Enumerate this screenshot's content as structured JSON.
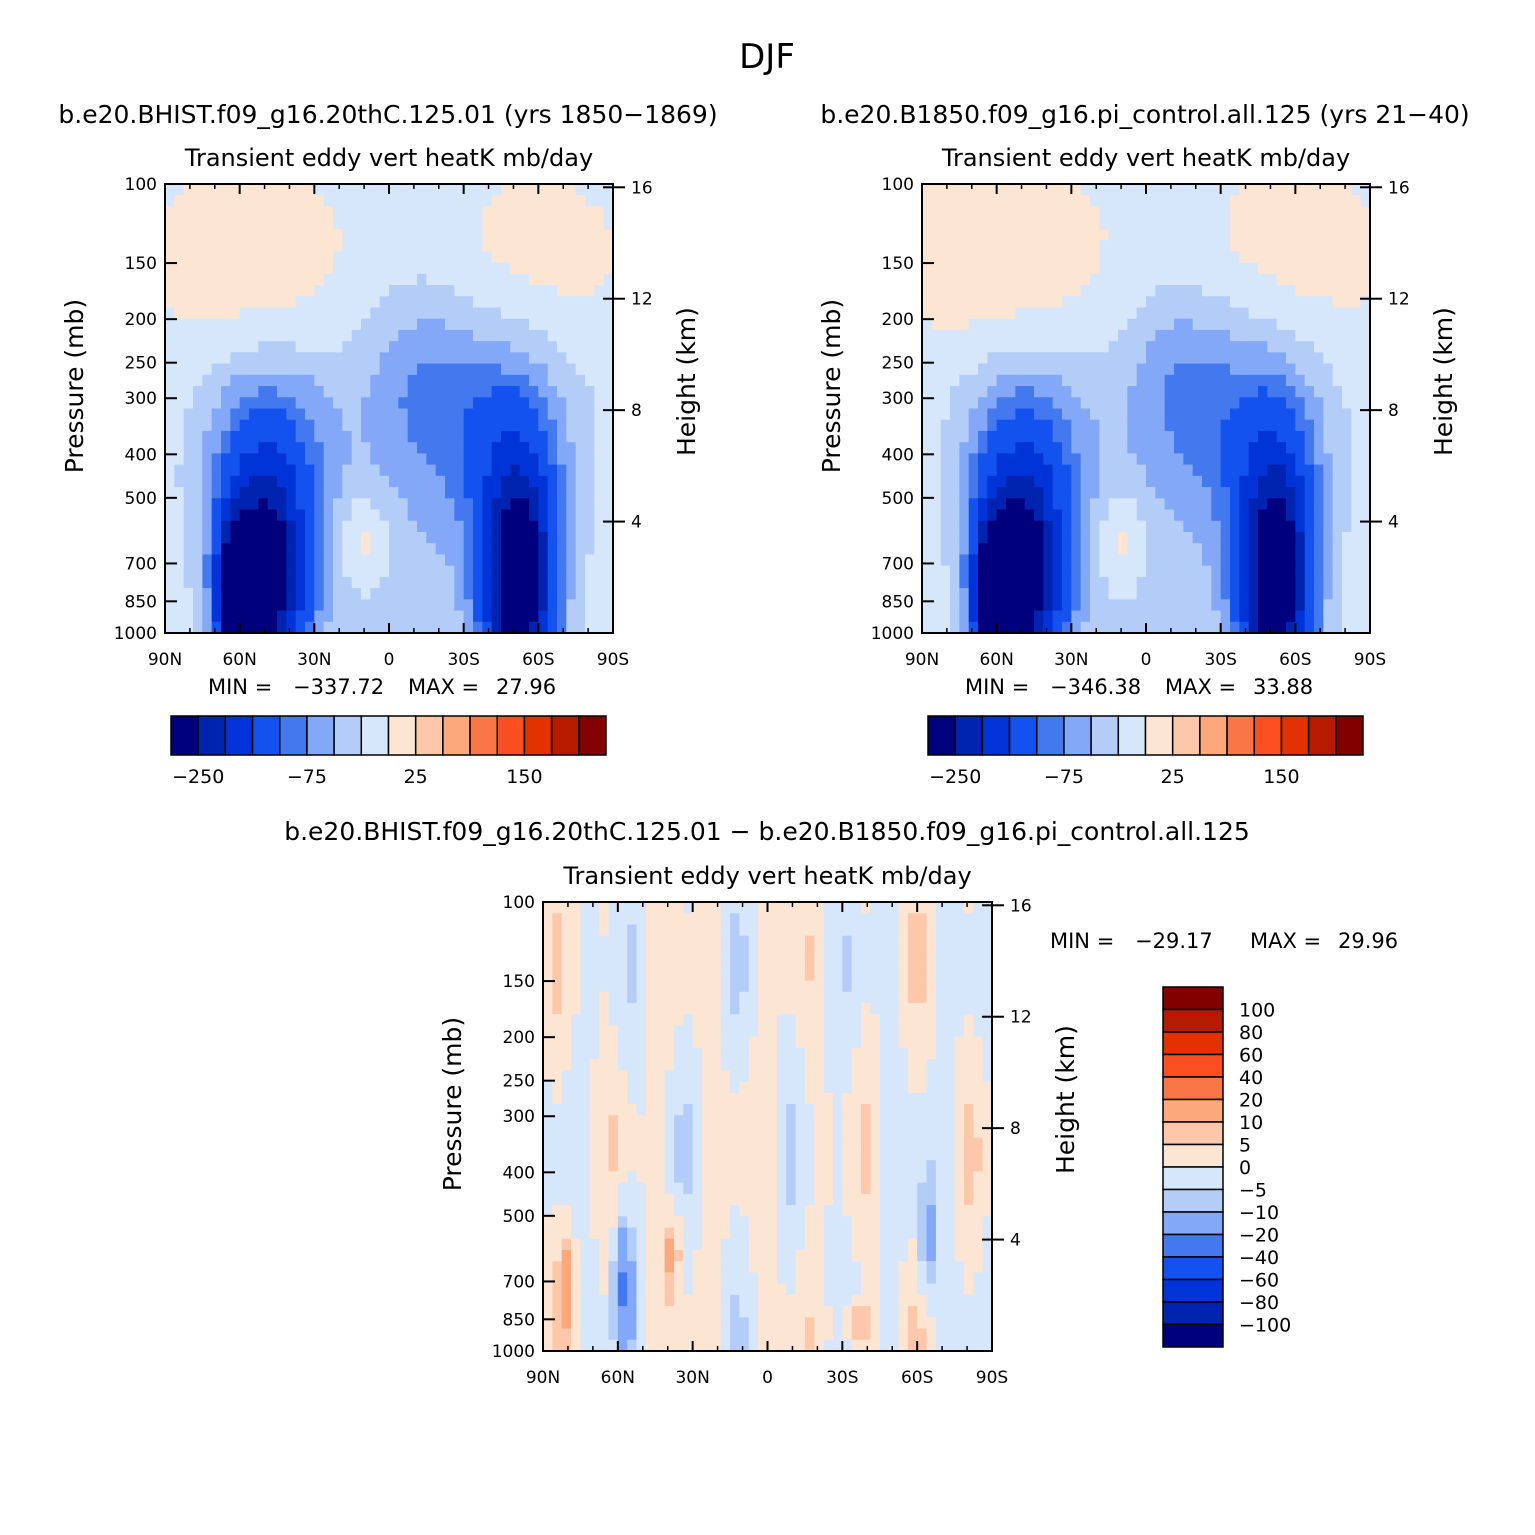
{
  "figure": {
    "title": "DJF",
    "panels": [
      {
        "id": "case",
        "header": "b.e20.BHIST.f09_g16.20thC.125.01 (yrs 1850−1869)",
        "title": "Transient eddy vert heatK mb/day",
        "ylabel": "Pressure (mb)",
        "y2label": "Height (km)",
        "min_label": "MIN =",
        "min_value": "−337.72",
        "max_label": "MAX =",
        "max_value": "27.96"
      },
      {
        "id": "control",
        "header": "b.e20.B1850.f09_g16.pi_control.all.125 (yrs 21−40)",
        "title": "Transient eddy vert heatK mb/day",
        "ylabel": "Pressure (mb)",
        "y2label": "Height (km)",
        "min_label": "MIN =",
        "min_value": "−346.38",
        "max_label": "MAX =",
        "max_value": "33.88"
      },
      {
        "id": "diff",
        "header": "b.e20.BHIST.f09_g16.20thC.125.01 − b.e20.B1850.f09_g16.pi_control.all.125",
        "title": "Transient eddy vert heatK mb/day",
        "ylabel": "Pressure (mb)",
        "y2label": "Height (km)",
        "min_label": "MIN =",
        "min_value": "−29.17",
        "max_label": "MAX =",
        "max_value": "29.96"
      }
    ],
    "x_ticks": [
      "90N",
      "60N",
      "30N",
      "0",
      "30S",
      "60S",
      "90S"
    ],
    "y_ticks": [
      "100",
      "150",
      "200",
      "250",
      "300",
      "400",
      "500",
      "700",
      "850",
      "1000"
    ],
    "y2_ticks": [
      "16",
      "12",
      "8",
      "4"
    ],
    "colorbar_main": {
      "colors": [
        "#00007f",
        "#0023b0",
        "#0034d9",
        "#1452ef",
        "#4378ef",
        "#82a8f7",
        "#b3cdf8",
        "#d7e7fb",
        "#fde5d3",
        "#fdc7a9",
        "#fca87c",
        "#fa7647",
        "#fb4f22",
        "#e33100",
        "#b61b00",
        "#820000"
      ],
      "labels": [
        "−250",
        "−75",
        "25",
        "150"
      ]
    },
    "colorbar_diff": {
      "colors_top_to_bottom": [
        "#820000",
        "#b61b00",
        "#e33100",
        "#fb4f22",
        "#fa7647",
        "#fca87c",
        "#fdc7a9",
        "#fde5d3",
        "#d7e7fb",
        "#b3cdf8",
        "#82a8f7",
        "#4378ef",
        "#1452ef",
        "#0034d9",
        "#0023b0",
        "#00007f"
      ],
      "labels": [
        "100",
        "80",
        "60",
        "40",
        "20",
        "10",
        "5",
        "0",
        "−5",
        "−10",
        "−20",
        "−40",
        "−60",
        "−80",
        "−100"
      ]
    }
  },
  "chart_data": [
    {
      "type": "heatmap",
      "title": "Transient eddy vert heatK mb/day",
      "header": "b.e20.BHIST.f09_g16.20thC.125.01 (yrs 1850−1869)",
      "xlabel": "",
      "ylabel": "Pressure (mb)",
      "y2label": "Height (km)",
      "xlim": [
        90,
        -90
      ],
      "ylim": [
        1000,
        100
      ],
      "yscale": "log",
      "min": -337.72,
      "max": 27.96,
      "levels": [
        -250,
        -200,
        -150,
        -100,
        -75,
        -50,
        -25,
        0,
        25,
        50,
        75,
        100,
        150,
        200,
        250
      ],
      "features": [
        {
          "lat": 47,
          "p": 780,
          "value": -300
        },
        {
          "lat": 58,
          "p": 800,
          "value": -300
        },
        {
          "lat": -50,
          "p": 830,
          "value": -320
        },
        {
          "lat": 10,
          "p": 600,
          "value": 15
        },
        {
          "lat": -10,
          "p": 160,
          "value": 10
        }
      ]
    },
    {
      "type": "heatmap",
      "title": "Transient eddy vert heatK mb/day",
      "header": "b.e20.B1850.f09_g16.pi_control.all.125 (yrs 21−40)",
      "xlabel": "",
      "ylabel": "Pressure (mb)",
      "y2label": "Height (km)",
      "xlim": [
        90,
        -90
      ],
      "ylim": [
        1000,
        100
      ],
      "yscale": "log",
      "min": -346.38,
      "max": 33.88,
      "levels": [
        -250,
        -200,
        -150,
        -100,
        -75,
        -50,
        -25,
        0,
        25,
        50,
        75,
        100,
        150,
        200,
        250
      ],
      "features": [
        {
          "lat": 47,
          "p": 780,
          "value": -310
        },
        {
          "lat": 58,
          "p": 800,
          "value": -310
        },
        {
          "lat": -50,
          "p": 830,
          "value": -330
        },
        {
          "lat": 10,
          "p": 600,
          "value": 18
        },
        {
          "lat": -10,
          "p": 160,
          "value": 12
        }
      ]
    },
    {
      "type": "heatmap",
      "title": "Transient eddy vert heatK mb/day",
      "header": "b.e20.BHIST.f09_g16.20thC.125.01 − b.e20.B1850.f09_g16.pi_control.all.125",
      "xlabel": "",
      "ylabel": "Pressure (mb)",
      "y2label": "Height (km)",
      "xlim": [
        90,
        -90
      ],
      "ylim": [
        1000,
        100
      ],
      "yscale": "log",
      "min": -29.17,
      "max": 29.96,
      "levels": [
        -100,
        -80,
        -60,
        -40,
        -20,
        -10,
        -5,
        0,
        5,
        10,
        20,
        40,
        60,
        80,
        100
      ],
      "features": [
        {
          "lat": 60,
          "p": 700,
          "value": -15
        },
        {
          "lat": 80,
          "p": 700,
          "value": 12
        },
        {
          "lat": 30,
          "p": 650,
          "value": 8
        },
        {
          "lat": -65,
          "p": 550,
          "value": -10
        },
        {
          "lat": -35,
          "p": 880,
          "value": 10
        }
      ]
    }
  ]
}
